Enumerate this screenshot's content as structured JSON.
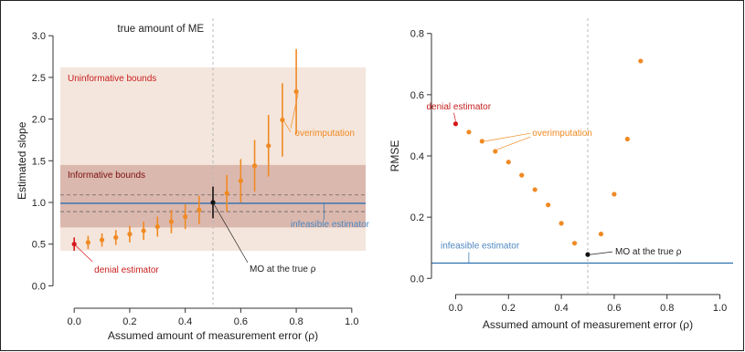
{
  "colors": {
    "orange": "#f08a24",
    "red": "#d7191c",
    "black": "#111111",
    "blue": "#2c6fb0",
    "blue_label": "#4f88c0",
    "uninformative_band": "#f4e6dc",
    "informative_band": "#dbb8ae",
    "red_text": "#c81e1e",
    "dark_red_text": "#7a1010",
    "refline": "#b8b8b8"
  },
  "chart_data": [
    {
      "type": "scatter",
      "xlabel": "Assumed amount of measurement error (ρ)",
      "ylabel": "Estimated slope",
      "xlim": [
        -0.05,
        1.05
      ],
      "ylim": [
        -0.05,
        3.1
      ],
      "xticks": [
        "0.0",
        "0.2",
        "0.4",
        "0.6",
        "0.8",
        "1.0"
      ],
      "yticks": [
        "0.0",
        "0.5",
        "1.0",
        "1.5",
        "2.0",
        "2.5",
        "3.0"
      ],
      "bands": [
        {
          "name": "Uninformative bounds",
          "ymin": 0.42,
          "ymax": 2.62
        },
        {
          "name": "Informative bounds",
          "ymin": 0.7,
          "ymax": 1.45
        }
      ],
      "vline_x": 0.5,
      "true_me_label": "true amount of ME",
      "infeasible": {
        "y": 0.99,
        "lower": 0.89,
        "upper": 1.09
      },
      "series": [
        {
          "x": [
            0,
            0.05,
            0.1,
            0.15,
            0.2,
            0.25,
            0.3,
            0.35,
            0.4,
            0.45,
            0.5,
            0.55,
            0.6,
            0.65,
            0.7,
            0.75,
            0.8
          ],
          "y": [
            0.5,
            0.52,
            0.55,
            0.58,
            0.62,
            0.66,
            0.71,
            0.77,
            0.83,
            0.91,
            1.0,
            1.11,
            1.26,
            1.44,
            1.68,
            1.99,
            2.33
          ],
          "lower": [
            0.42,
            0.44,
            0.47,
            0.49,
            0.52,
            0.55,
            0.59,
            0.63,
            0.68,
            0.74,
            0.81,
            0.89,
            1.0,
            1.13,
            1.31,
            1.55,
            1.82
          ],
          "upper": [
            0.58,
            0.6,
            0.63,
            0.67,
            0.72,
            0.77,
            0.83,
            0.91,
            0.98,
            1.08,
            1.19,
            1.33,
            1.52,
            1.75,
            2.05,
            2.43,
            2.84
          ]
        }
      ],
      "annotations": {
        "denial": "denial estimator",
        "overimputation": "overimputation",
        "mo_true": "MO at the true ρ",
        "infeasible": "infeasible estimator"
      }
    },
    {
      "type": "scatter",
      "xlabel": "Assumed amount of measurement error (ρ)",
      "ylabel": "RMSE",
      "xlim": [
        -0.05,
        1.05
      ],
      "ylim": [
        -0.02,
        0.82
      ],
      "xticks": [
        "0.0",
        "0.2",
        "0.4",
        "0.6",
        "0.8",
        "1.0"
      ],
      "yticks": [
        "0.0",
        "0.2",
        "0.4",
        "0.6",
        "0.8"
      ],
      "vline_x": 0.5,
      "infeasible_y": 0.05,
      "series": [
        {
          "x": [
            0,
            0.05,
            0.1,
            0.15,
            0.2,
            0.25,
            0.3,
            0.35,
            0.4,
            0.45,
            0.5,
            0.55,
            0.6,
            0.65,
            0.7
          ],
          "y": [
            0.505,
            0.478,
            0.448,
            0.415,
            0.38,
            0.337,
            0.29,
            0.24,
            0.18,
            0.115,
            0.078,
            0.145,
            0.275,
            0.455,
            0.71
          ]
        }
      ],
      "annotations": {
        "denial": "denial estimator",
        "overimputation": "overimputation",
        "mo_true": "MO at the true ρ",
        "infeasible": "infeasible estimator"
      }
    }
  ]
}
